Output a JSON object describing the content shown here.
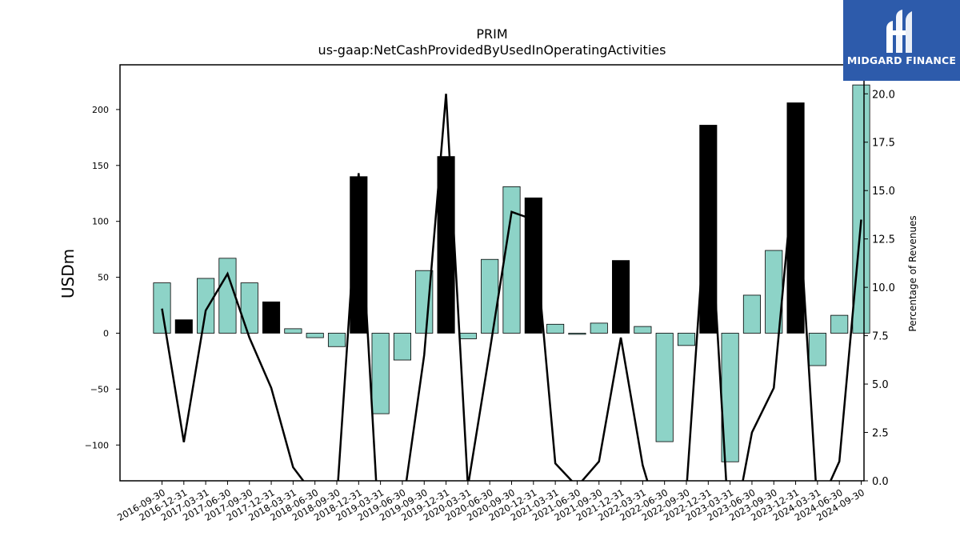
{
  "chart_data": {
    "type": "bar",
    "title": "PRIM",
    "subtitle": "us-gaap:NetCashProvidedByUsedInOperatingActivities",
    "ylabel": "USDm",
    "y2label": "Percentage of Revenues",
    "ylim": [
      -132,
      240
    ],
    "y2lim": [
      0,
      21.5
    ],
    "yticks": [
      -100,
      -50,
      0,
      50,
      100,
      150,
      200
    ],
    "y2ticks": [
      "0.0",
      "2.5",
      "5.0",
      "7.5",
      "10.0",
      "12.5",
      "15.0",
      "17.5",
      "20.0"
    ],
    "categories": [
      "2016-09-30",
      "2016-12-31",
      "2017-03-31",
      "2017-06-30",
      "2017-09-30",
      "2017-12-31",
      "2018-03-31",
      "2018-06-30",
      "2018-09-30",
      "2018-12-31",
      "2019-03-31",
      "2019-06-30",
      "2019-09-30",
      "2019-12-31",
      "2020-03-31",
      "2020-06-30",
      "2020-09-30",
      "2020-12-31",
      "2021-03-31",
      "2021-06-30",
      "2021-09-30",
      "2021-12-31",
      "2022-03-31",
      "2022-06-30",
      "2022-09-30",
      "2022-12-31",
      "2023-03-31",
      "2023-06-30",
      "2023-09-30",
      "2023-12-31",
      "2024-03-31",
      "2024-06-30",
      "2024-09-30"
    ],
    "series": [
      {
        "values": [
          45,
          12,
          49,
          67,
          45,
          28,
          4,
          -4,
          -12,
          140,
          -72,
          -24,
          56,
          158,
          -5,
          66,
          131,
          121,
          8,
          -1,
          9,
          65,
          6,
          -97,
          -11,
          186,
          -115,
          34,
          74,
          206,
          -29,
          16,
          222
        ],
        "highlight": [
          false,
          true,
          false,
          false,
          false,
          true,
          false,
          false,
          false,
          true,
          false,
          false,
          false,
          true,
          false,
          false,
          false,
          true,
          false,
          false,
          false,
          true,
          false,
          false,
          false,
          true,
          false,
          false,
          false,
          true,
          false,
          false,
          false
        ]
      },
      {
        "values": [
          8.9,
          2.0,
          8.8,
          10.7,
          7.4,
          4.8,
          0.7,
          -0.8,
          -1.0,
          15.9,
          -4.0,
          -1.5,
          6.5,
          20.0,
          -0.3,
          6.7,
          13.9,
          13.5,
          0.9,
          -0.3,
          1.0,
          7.4,
          0.8,
          -3.0,
          -0.5,
          15.9,
          -3.5,
          2.5,
          4.8,
          17.0,
          -1.5,
          1.0,
          13.5
        ]
      }
    ],
    "colors": {
      "bar": "#8dd3c7",
      "highlight_bar": "#000000",
      "line": "#000000"
    },
    "grid": false
  },
  "logo": {
    "text": "MIDGARD FINANCE",
    "brand_color": "#2d5bab"
  }
}
